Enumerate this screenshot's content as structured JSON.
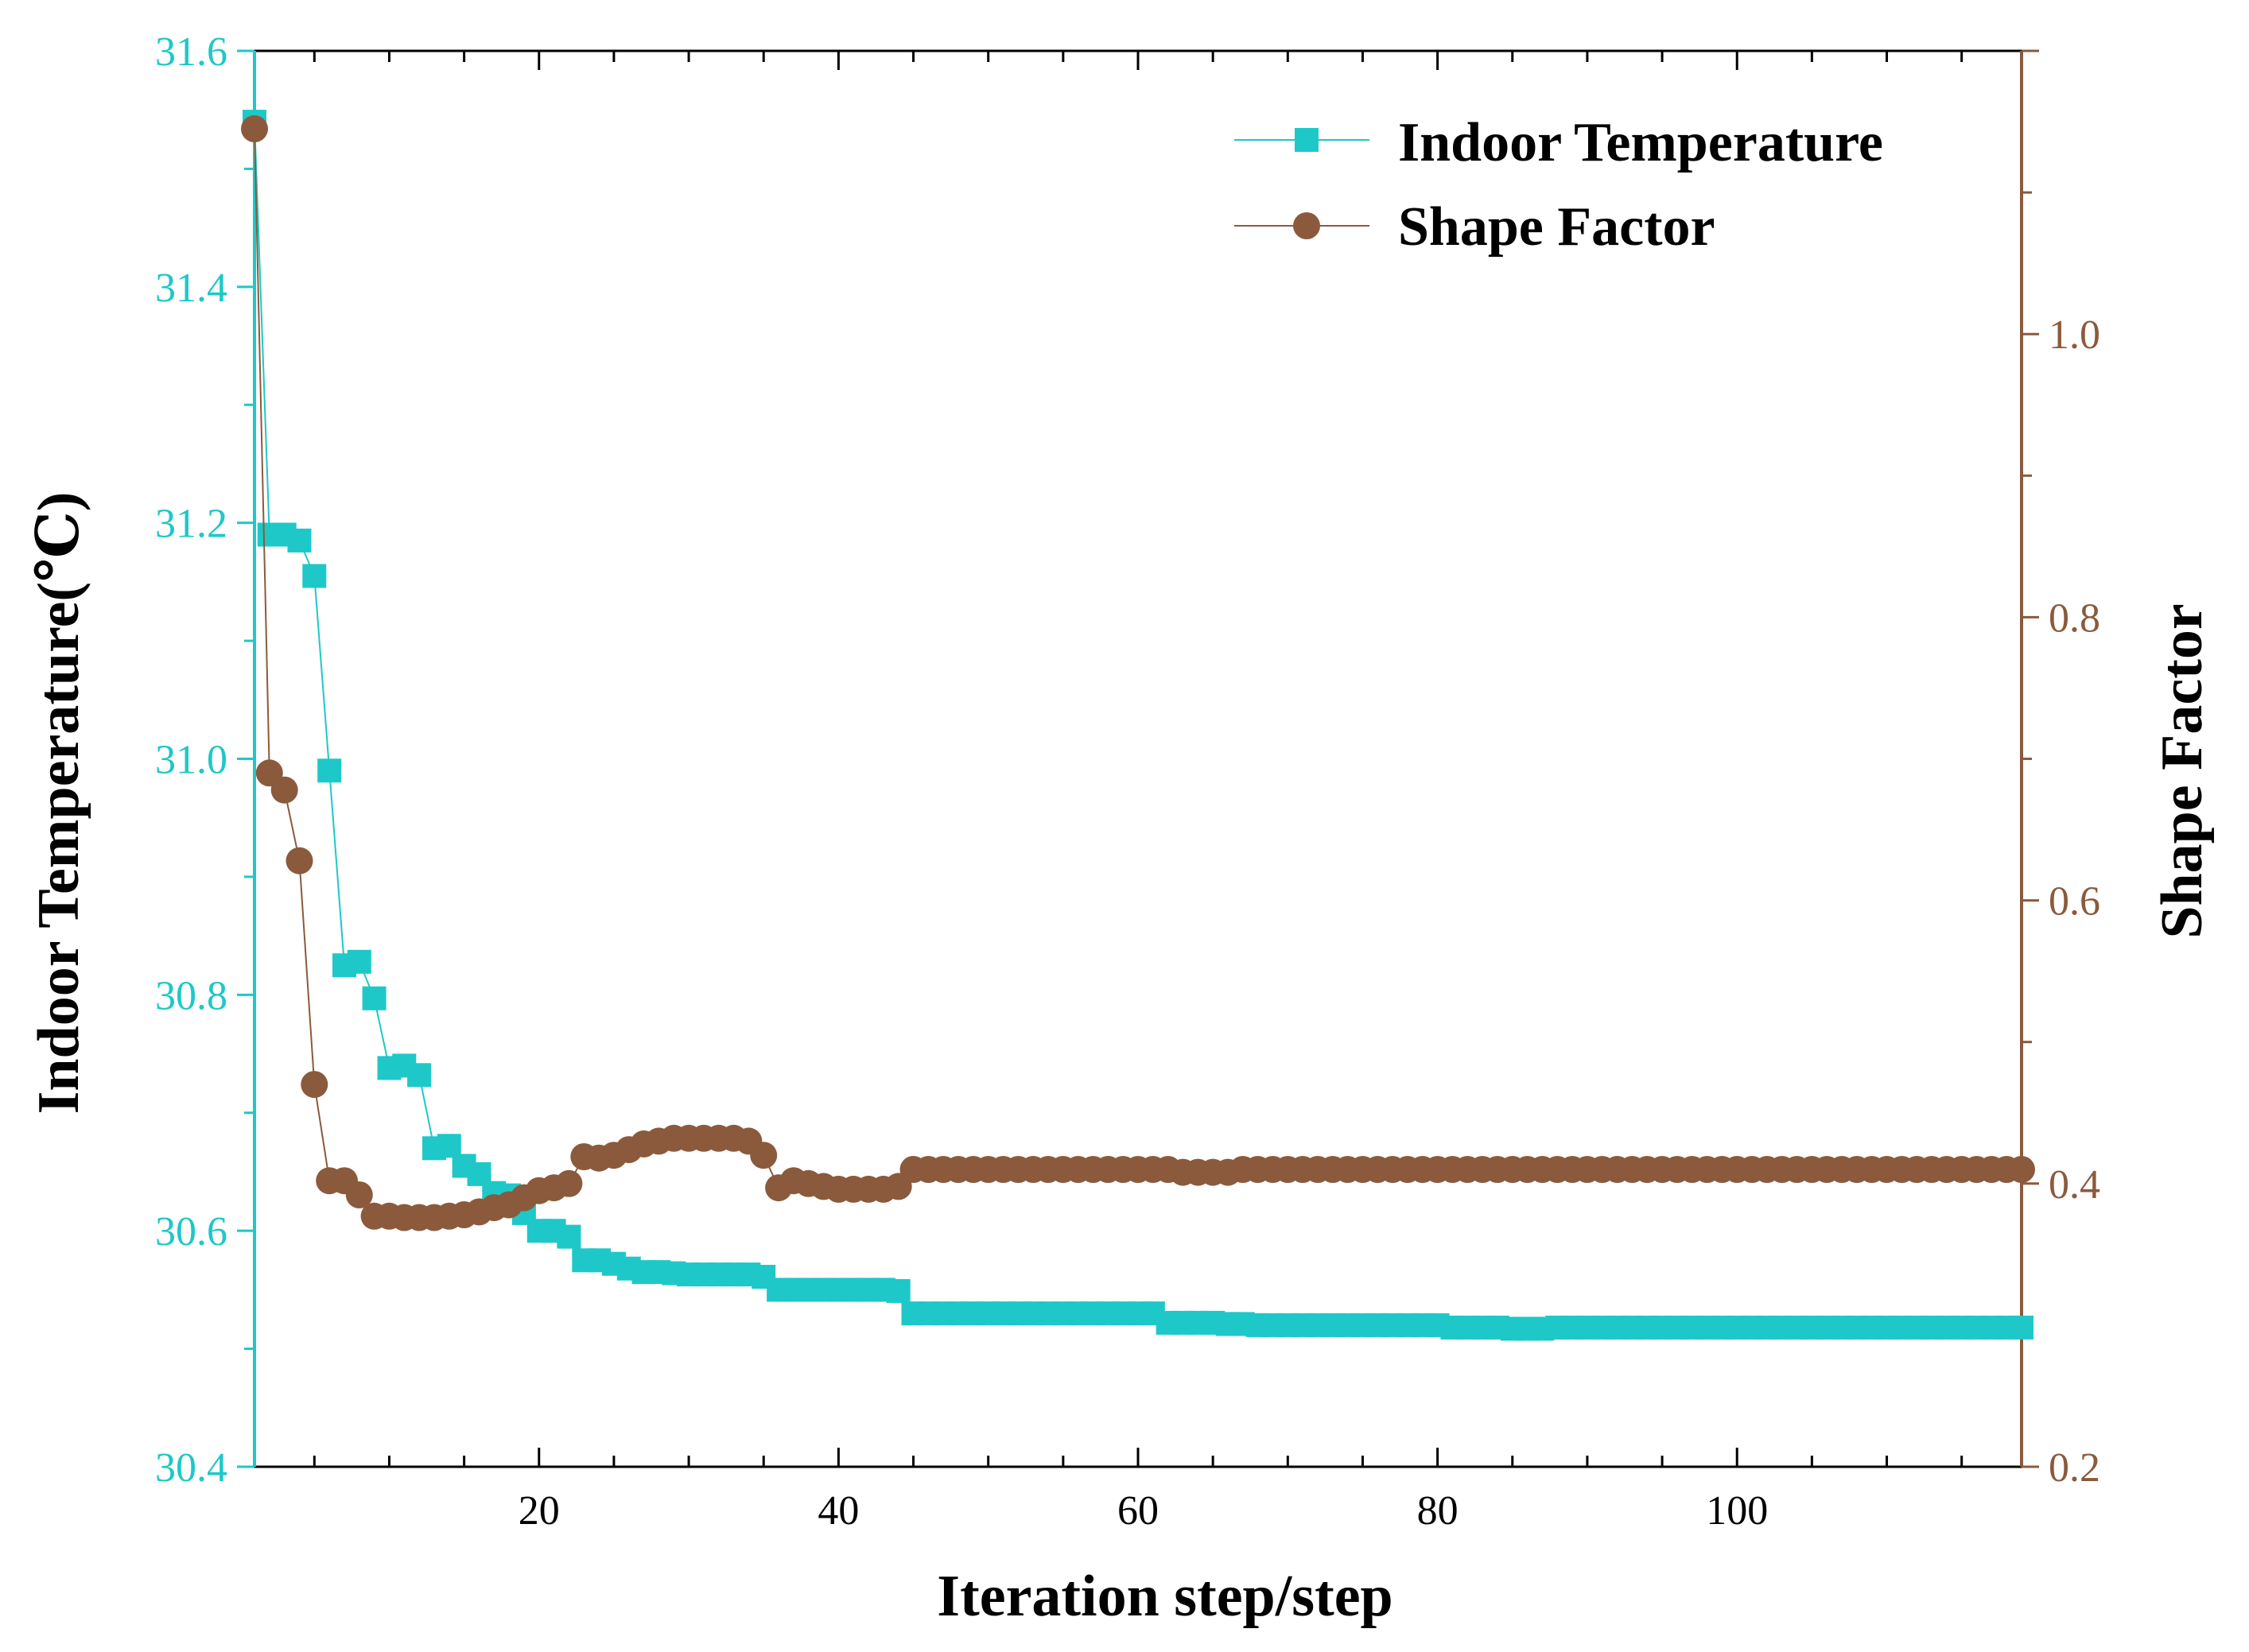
{
  "chart_data": {
    "type": "line",
    "title": "",
    "xlabel": "Iteration step/step",
    "ylabel_left": "Indoor Temperature(℃)",
    "ylabel_right": "Shape Factor",
    "xlim": [
      1,
      119
    ],
    "ylim_left": [
      30.4,
      31.6
    ],
    "ylim_right": [
      0.2,
      1.2
    ],
    "x_ticks": [
      20,
      40,
      60,
      80,
      100
    ],
    "x_tick_labels": [
      "20",
      "40",
      "60",
      "80",
      "100"
    ],
    "y_left_ticks": [
      30.4,
      30.6,
      30.8,
      31.0,
      31.2,
      31.4,
      31.6
    ],
    "y_left_tick_labels": [
      "30.4",
      "30.6",
      "30.8",
      "31.0",
      "31.2",
      "31.4",
      "31.6"
    ],
    "y_right_ticks": [
      0.2,
      0.4,
      0.6,
      0.8,
      1.0
    ],
    "y_right_tick_labels": [
      "0.2",
      "0.4",
      "0.6",
      "0.8",
      "1.0"
    ],
    "legend_position": "top-right",
    "colors": {
      "temperature": "#1ec8c8",
      "shape_factor": "#8b5a3c",
      "left_axis": "#1ec8c8",
      "right_axis": "#8b5a3c",
      "frame": "#000000"
    },
    "series": [
      {
        "name": "Indoor Temperature",
        "axis": "left",
        "marker": "square",
        "color": "#1ec8c8",
        "x": [
          1,
          2,
          3,
          4,
          5,
          6,
          7,
          8,
          9,
          10,
          11,
          12,
          13,
          14,
          15,
          16,
          17,
          18,
          19,
          20,
          21,
          22,
          23,
          24,
          25,
          26,
          27,
          28,
          29,
          30,
          31,
          32,
          33,
          34,
          35,
          36,
          37,
          38,
          39,
          40,
          41,
          42,
          43,
          44,
          45,
          46,
          47,
          48,
          49,
          50,
          51,
          52,
          53,
          54,
          55,
          56,
          57,
          58,
          59,
          60,
          61,
          62,
          63,
          64,
          65,
          66,
          67,
          68,
          69,
          70,
          71,
          72,
          73,
          74,
          75,
          76,
          77,
          78,
          79,
          80,
          81,
          82,
          83,
          84,
          85,
          86,
          87,
          88,
          89,
          90,
          91,
          92,
          93,
          94,
          95,
          96,
          97,
          98,
          99,
          100,
          101,
          102,
          103,
          104,
          105,
          106,
          107,
          108,
          109,
          110,
          111,
          112,
          113,
          114,
          115,
          116,
          117,
          118,
          119
        ],
        "values": [
          31.54,
          31.19,
          31.19,
          31.185,
          31.155,
          30.99,
          30.825,
          30.828,
          30.797,
          30.738,
          30.74,
          30.732,
          30.67,
          30.672,
          30.655,
          30.648,
          30.632,
          30.63,
          30.615,
          30.6,
          30.6,
          30.595,
          30.575,
          30.575,
          30.572,
          30.568,
          30.565,
          30.565,
          30.564,
          30.563,
          30.563,
          30.563,
          30.563,
          30.563,
          30.561,
          30.55,
          30.55,
          30.55,
          30.55,
          30.55,
          30.55,
          30.55,
          30.55,
          30.549,
          30.53,
          30.53,
          30.53,
          30.53,
          30.53,
          30.53,
          30.53,
          30.53,
          30.53,
          30.53,
          30.53,
          30.53,
          30.53,
          30.53,
          30.53,
          30.53,
          30.53,
          30.522,
          30.522,
          30.522,
          30.522,
          30.521,
          30.521,
          30.52,
          30.52,
          30.52,
          30.52,
          30.52,
          30.52,
          30.52,
          30.52,
          30.52,
          30.52,
          30.52,
          30.52,
          30.52,
          30.518,
          30.518,
          30.518,
          30.518,
          30.517,
          30.517,
          30.517,
          30.518,
          30.518,
          30.518,
          30.518,
          30.518,
          30.518,
          30.518,
          30.518,
          30.518,
          30.518,
          30.518,
          30.518,
          30.518,
          30.518,
          30.518,
          30.518,
          30.518,
          30.518,
          30.518,
          30.518,
          30.518,
          30.518,
          30.518,
          30.518,
          30.518,
          30.518,
          30.518,
          30.518,
          30.518,
          30.518,
          30.518,
          30.518
        ]
      },
      {
        "name": "Shape Factor",
        "axis": "right",
        "marker": "circle",
        "color": "#8b5a3c",
        "x": [
          1,
          2,
          3,
          4,
          5,
          6,
          7,
          8,
          9,
          10,
          11,
          12,
          13,
          14,
          15,
          16,
          17,
          18,
          19,
          20,
          21,
          22,
          23,
          24,
          25,
          26,
          27,
          28,
          29,
          30,
          31,
          32,
          33,
          34,
          35,
          36,
          37,
          38,
          39,
          40,
          41,
          42,
          43,
          44,
          45,
          46,
          47,
          48,
          49,
          50,
          51,
          52,
          53,
          54,
          55,
          56,
          57,
          58,
          59,
          60,
          61,
          62,
          63,
          64,
          65,
          66,
          67,
          68,
          69,
          70,
          71,
          72,
          73,
          74,
          75,
          76,
          77,
          78,
          79,
          80,
          81,
          82,
          83,
          84,
          85,
          86,
          87,
          88,
          89,
          90,
          91,
          92,
          93,
          94,
          95,
          96,
          97,
          98,
          99,
          100,
          101,
          102,
          103,
          104,
          105,
          106,
          107,
          108,
          109,
          110,
          111,
          112,
          113,
          114,
          115,
          116,
          117,
          118,
          119
        ],
        "values": [
          1.145,
          0.69,
          0.678,
          0.628,
          0.47,
          0.402,
          0.402,
          0.392,
          0.377,
          0.377,
          0.376,
          0.376,
          0.376,
          0.377,
          0.378,
          0.38,
          0.383,
          0.385,
          0.39,
          0.395,
          0.397,
          0.4,
          0.419,
          0.418,
          0.42,
          0.424,
          0.428,
          0.43,
          0.432,
          0.432,
          0.432,
          0.432,
          0.432,
          0.43,
          0.42,
          0.397,
          0.402,
          0.4,
          0.398,
          0.396,
          0.396,
          0.396,
          0.396,
          0.398,
          0.41,
          0.41,
          0.41,
          0.41,
          0.41,
          0.41,
          0.41,
          0.41,
          0.41,
          0.41,
          0.41,
          0.41,
          0.41,
          0.41,
          0.41,
          0.41,
          0.41,
          0.41,
          0.408,
          0.408,
          0.408,
          0.408,
          0.41,
          0.41,
          0.41,
          0.41,
          0.41,
          0.41,
          0.41,
          0.41,
          0.41,
          0.41,
          0.41,
          0.41,
          0.41,
          0.41,
          0.41,
          0.41,
          0.41,
          0.41,
          0.41,
          0.41,
          0.41,
          0.41,
          0.41,
          0.41,
          0.41,
          0.41,
          0.41,
          0.41,
          0.41,
          0.41,
          0.41,
          0.41,
          0.41,
          0.41,
          0.41,
          0.41,
          0.41,
          0.41,
          0.41,
          0.41,
          0.41,
          0.41,
          0.41,
          0.41,
          0.41,
          0.41,
          0.41,
          0.41,
          0.41,
          0.41,
          0.41,
          0.41,
          0.41
        ]
      }
    ]
  }
}
